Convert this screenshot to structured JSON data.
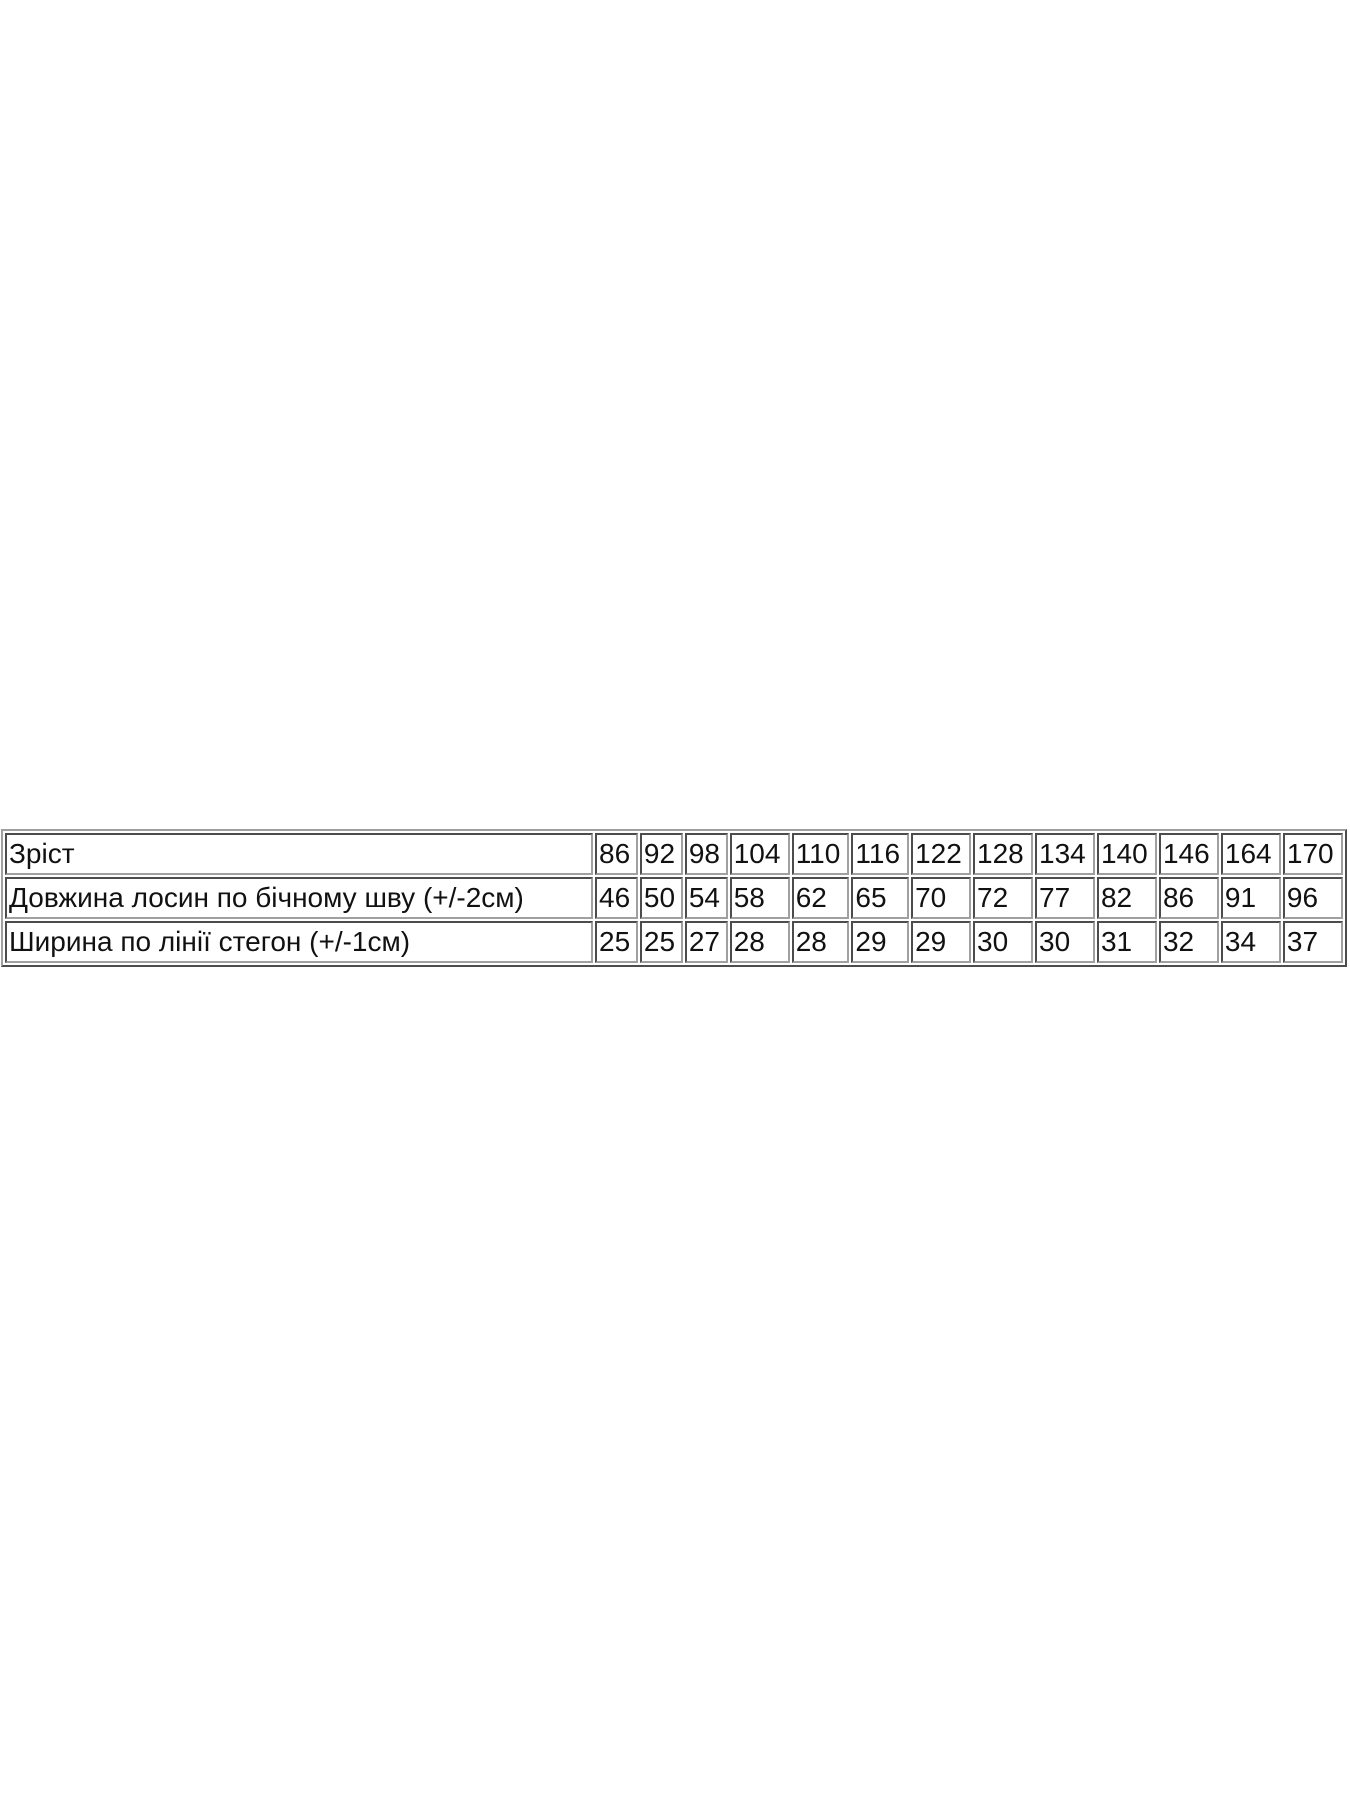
{
  "table": {
    "rows": [
      {
        "label": "Зріст",
        "values": [
          "86",
          "92",
          "98",
          "104",
          "110",
          "116",
          "122",
          "128",
          "134",
          "140",
          "146",
          "164",
          "170"
        ]
      },
      {
        "label": "Довжина лосин по бічному шву (+/-2см)",
        "values": [
          "46",
          "50",
          "54",
          "58",
          "62",
          "65",
          "70",
          "72",
          "77",
          "82",
          "86",
          "91",
          "96"
        ]
      },
      {
        "label": "Ширина по лінії стегон (+/-1см)",
        "values": [
          "25",
          "25",
          "27",
          "28",
          "28",
          "29",
          "29",
          "30",
          "30",
          "31",
          "32",
          "34",
          "37"
        ]
      }
    ]
  }
}
